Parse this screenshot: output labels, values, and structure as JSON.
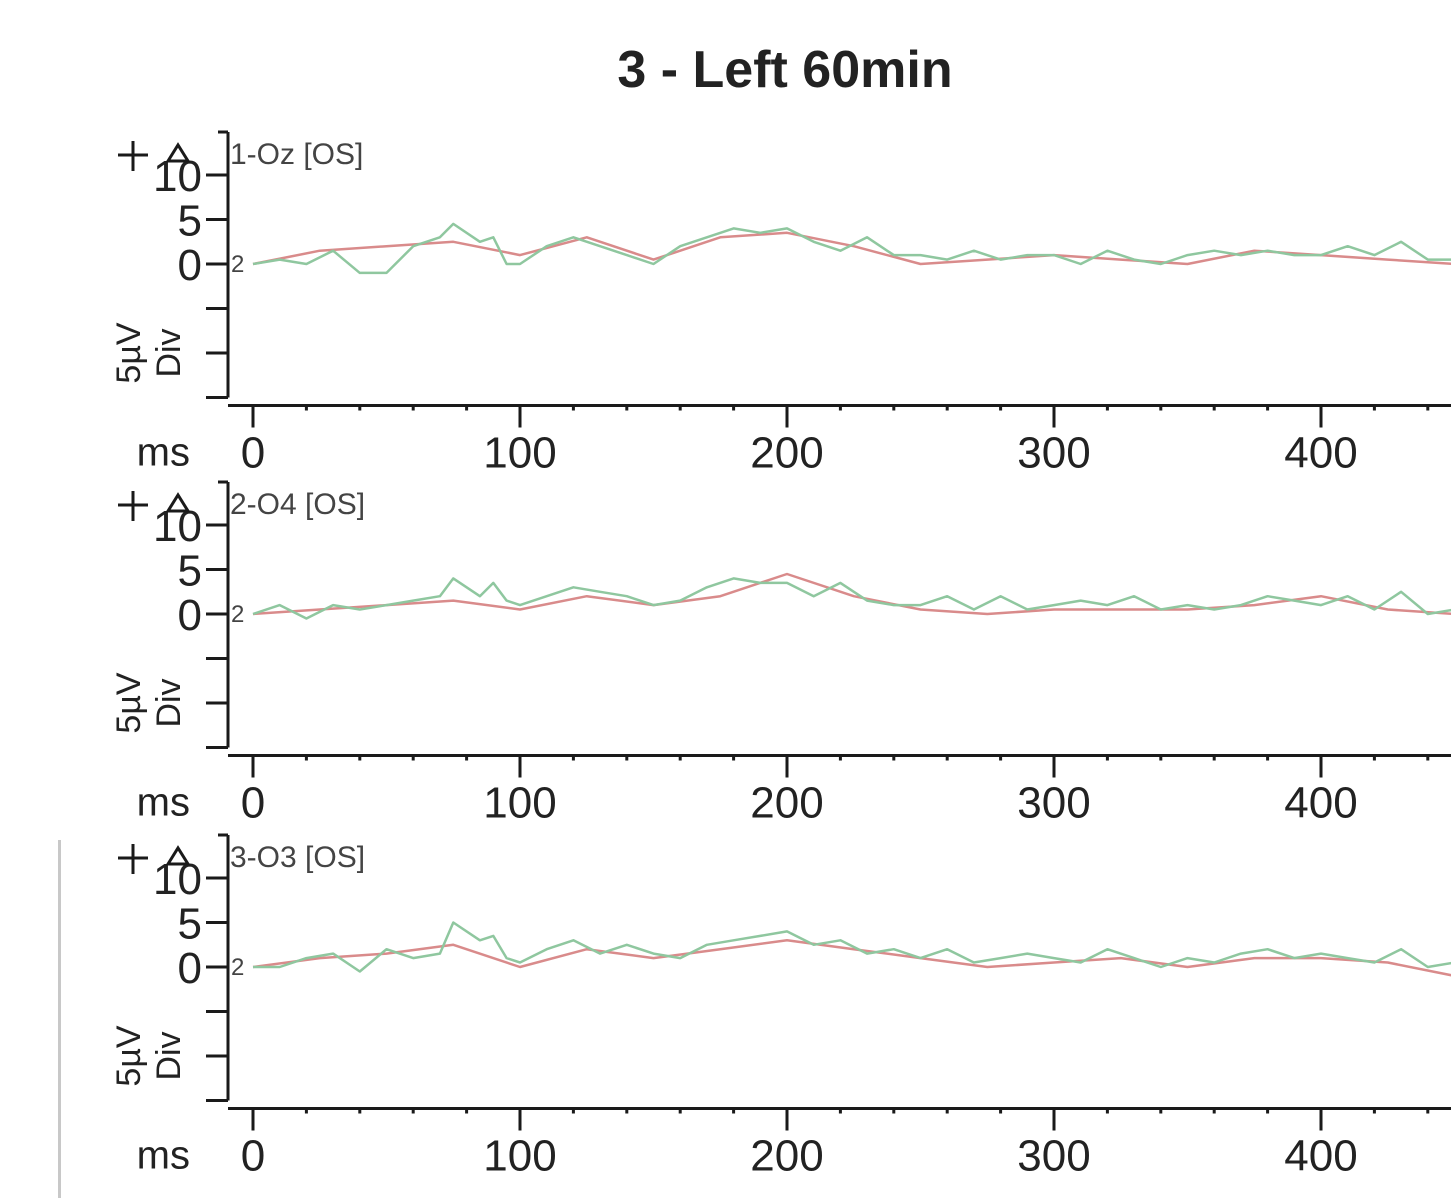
{
  "title": "3 - Left 60min",
  "colors": {
    "axis": "#1a1a1a",
    "text": "#222222",
    "trace_red": "#d98b8b",
    "trace_green": "#8fc79f",
    "channel_label": "#444444"
  },
  "chart_data": [
    {
      "type": "line",
      "channel_label": "1-Oz [OS]",
      "trace_marker": "2",
      "xlabel": "ms",
      "ylabel": "5µV Div",
      "xlim": [
        0,
        450
      ],
      "ylim": [
        -15,
        12
      ],
      "x_ticks": [
        0,
        100,
        200,
        300,
        400
      ],
      "y_tick_labels": [
        {
          "value": 10,
          "label": "10"
        },
        {
          "value": 5,
          "label": "5"
        },
        {
          "value": 0,
          "label": "0"
        }
      ],
      "y_ticks_minor": [
        -5,
        -10,
        -15
      ],
      "series": [
        {
          "color": "red",
          "x": [
            0,
            25,
            50,
            75,
            100,
            125,
            150,
            175,
            200,
            225,
            250,
            275,
            300,
            325,
            350,
            375,
            400,
            425,
            450
          ],
          "y": [
            0,
            1.5,
            2,
            2.5,
            1,
            3,
            0.5,
            3,
            3.5,
            2,
            0,
            0.5,
            1,
            0.5,
            0,
            1.5,
            1,
            0.5,
            0
          ]
        },
        {
          "color": "green",
          "x": [
            0,
            10,
            20,
            30,
            40,
            50,
            60,
            70,
            75,
            85,
            90,
            95,
            100,
            110,
            120,
            130,
            140,
            150,
            160,
            170,
            180,
            190,
            200,
            210,
            220,
            230,
            240,
            250,
            260,
            270,
            280,
            290,
            300,
            310,
            320,
            330,
            340,
            350,
            360,
            370,
            380,
            390,
            400,
            410,
            420,
            430,
            440,
            450
          ],
          "y": [
            0,
            0.5,
            0,
            1.5,
            -1,
            -1,
            2,
            3,
            4.5,
            2.5,
            3,
            0,
            0,
            2,
            3,
            2,
            1,
            0,
            2,
            3,
            4,
            3.5,
            4,
            2.5,
            1.5,
            3,
            1,
            1,
            0.5,
            1.5,
            0.5,
            1,
            1,
            0,
            1.5,
            0.5,
            0,
            1,
            1.5,
            1,
            1.5,
            1,
            1,
            2,
            1,
            2.5,
            0.5,
            0.5
          ]
        }
      ]
    },
    {
      "type": "line",
      "channel_label": "2-O4 [OS]",
      "trace_marker": "2",
      "xlabel": "ms",
      "ylabel": "5µV Div",
      "xlim": [
        0,
        450
      ],
      "ylim": [
        -15,
        12
      ],
      "x_ticks": [
        0,
        100,
        200,
        300,
        400
      ],
      "y_tick_labels": [
        {
          "value": 10,
          "label": "10"
        },
        {
          "value": 5,
          "label": "5"
        },
        {
          "value": 0,
          "label": "0"
        }
      ],
      "y_ticks_minor": [
        -5,
        -10,
        -15
      ],
      "series": [
        {
          "color": "red",
          "x": [
            0,
            25,
            50,
            75,
            100,
            125,
            150,
            175,
            200,
            225,
            250,
            275,
            300,
            325,
            350,
            375,
            400,
            425,
            450
          ],
          "y": [
            0,
            0.5,
            1,
            1.5,
            0.5,
            2,
            1,
            2,
            4.5,
            2,
            0.5,
            0,
            0.5,
            0.5,
            0.5,
            1,
            2,
            0.5,
            0
          ]
        },
        {
          "color": "green",
          "x": [
            0,
            10,
            20,
            30,
            40,
            50,
            60,
            70,
            75,
            85,
            90,
            95,
            100,
            110,
            120,
            130,
            140,
            150,
            160,
            170,
            180,
            190,
            200,
            210,
            220,
            230,
            240,
            250,
            260,
            270,
            280,
            290,
            300,
            310,
            320,
            330,
            340,
            350,
            360,
            370,
            380,
            390,
            400,
            410,
            420,
            430,
            440,
            450
          ],
          "y": [
            0,
            1,
            -0.5,
            1,
            0.5,
            1,
            1.5,
            2,
            4,
            2,
            3.5,
            1.5,
            1,
            2,
            3,
            2.5,
            2,
            1,
            1.5,
            3,
            4,
            3.5,
            3.5,
            2,
            3.5,
            1.5,
            1,
            1,
            2,
            0.5,
            2,
            0.5,
            1,
            1.5,
            1,
            2,
            0.5,
            1,
            0.5,
            1,
            2,
            1.5,
            1,
            2,
            0.5,
            2.5,
            0,
            0.5
          ]
        }
      ]
    },
    {
      "type": "line",
      "channel_label": "3-O3 [OS]",
      "trace_marker": "2",
      "xlabel": "ms",
      "ylabel": "5µV Div",
      "xlim": [
        0,
        450
      ],
      "ylim": [
        -15,
        12
      ],
      "x_ticks": [
        0,
        100,
        200,
        300,
        400
      ],
      "y_tick_labels": [
        {
          "value": 10,
          "label": "10"
        },
        {
          "value": 5,
          "label": "5"
        },
        {
          "value": 0,
          "label": "0"
        }
      ],
      "y_ticks_minor": [
        -5,
        -10,
        -15
      ],
      "series": [
        {
          "color": "red",
          "x": [
            0,
            25,
            50,
            75,
            100,
            125,
            150,
            175,
            200,
            225,
            250,
            275,
            300,
            325,
            350,
            375,
            400,
            425,
            450
          ],
          "y": [
            0,
            1,
            1.5,
            2.5,
            0,
            2,
            1,
            2,
            3,
            2,
            1,
            0,
            0.5,
            1,
            0,
            1,
            1,
            0.5,
            -1
          ]
        },
        {
          "color": "green",
          "x": [
            0,
            10,
            20,
            30,
            40,
            50,
            60,
            70,
            75,
            85,
            90,
            95,
            100,
            110,
            120,
            130,
            140,
            150,
            160,
            170,
            180,
            190,
            200,
            210,
            220,
            230,
            240,
            250,
            260,
            270,
            280,
            290,
            300,
            310,
            320,
            330,
            340,
            350,
            360,
            370,
            380,
            390,
            400,
            410,
            420,
            430,
            440,
            450
          ],
          "y": [
            0,
            0,
            1,
            1.5,
            -0.5,
            2,
            1,
            1.5,
            5,
            3,
            3.5,
            1,
            0.5,
            2,
            3,
            1.5,
            2.5,
            1.5,
            1,
            2.5,
            3,
            3.5,
            4,
            2.5,
            3,
            1.5,
            2,
            1,
            2,
            0.5,
            1,
            1.5,
            1,
            0.5,
            2,
            1,
            0,
            1,
            0.5,
            1.5,
            2,
            1,
            1.5,
            1,
            0.5,
            2,
            0,
            0.5
          ]
        }
      ]
    }
  ]
}
